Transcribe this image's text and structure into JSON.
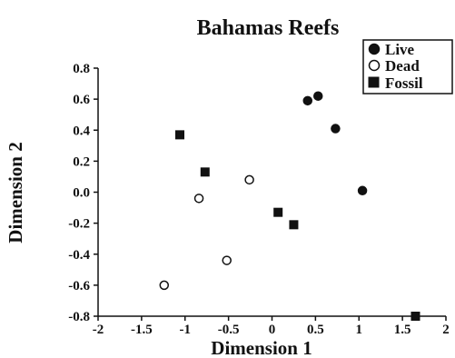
{
  "chart_data": {
    "type": "scatter",
    "title": "Bahamas Reefs",
    "xlabel": "Dimension  1",
    "ylabel": "Dimension  2",
    "xlim": [
      -2,
      2
    ],
    "ylim": [
      -0.8,
      0.8
    ],
    "x_ticks": [
      "-2",
      "-1.5",
      "-1",
      "-0.5",
      "0",
      "0.5",
      "1",
      "1.5",
      "2"
    ],
    "y_ticks": [
      "0.8",
      "0.6",
      "0.4",
      "0.2",
      "0.0",
      "-0.2",
      "-0.4",
      "-0.6",
      "-0.8"
    ],
    "grid": false,
    "legend_position": "top-right",
    "series": [
      {
        "name": "Live",
        "marker": "filled-circle",
        "color": "#111111",
        "points": [
          {
            "x": 0.41,
            "y": 0.59
          },
          {
            "x": 0.53,
            "y": 0.62
          },
          {
            "x": 0.73,
            "y": 0.41
          },
          {
            "x": 1.04,
            "y": 0.01
          }
        ]
      },
      {
        "name": "Dead",
        "marker": "open-circle",
        "color": "#111111",
        "points": [
          {
            "x": -0.26,
            "y": 0.08
          },
          {
            "x": -0.84,
            "y": -0.04
          },
          {
            "x": -0.52,
            "y": -0.44
          },
          {
            "x": -1.24,
            "y": -0.6
          }
        ]
      },
      {
        "name": "Fossil",
        "marker": "filled-square",
        "color": "#111111",
        "points": [
          {
            "x": -1.06,
            "y": 0.37
          },
          {
            "x": -0.77,
            "y": 0.13
          },
          {
            "x": 0.07,
            "y": -0.13
          },
          {
            "x": 0.25,
            "y": -0.21
          },
          {
            "x": 1.65,
            "y": -0.8
          }
        ]
      }
    ]
  }
}
